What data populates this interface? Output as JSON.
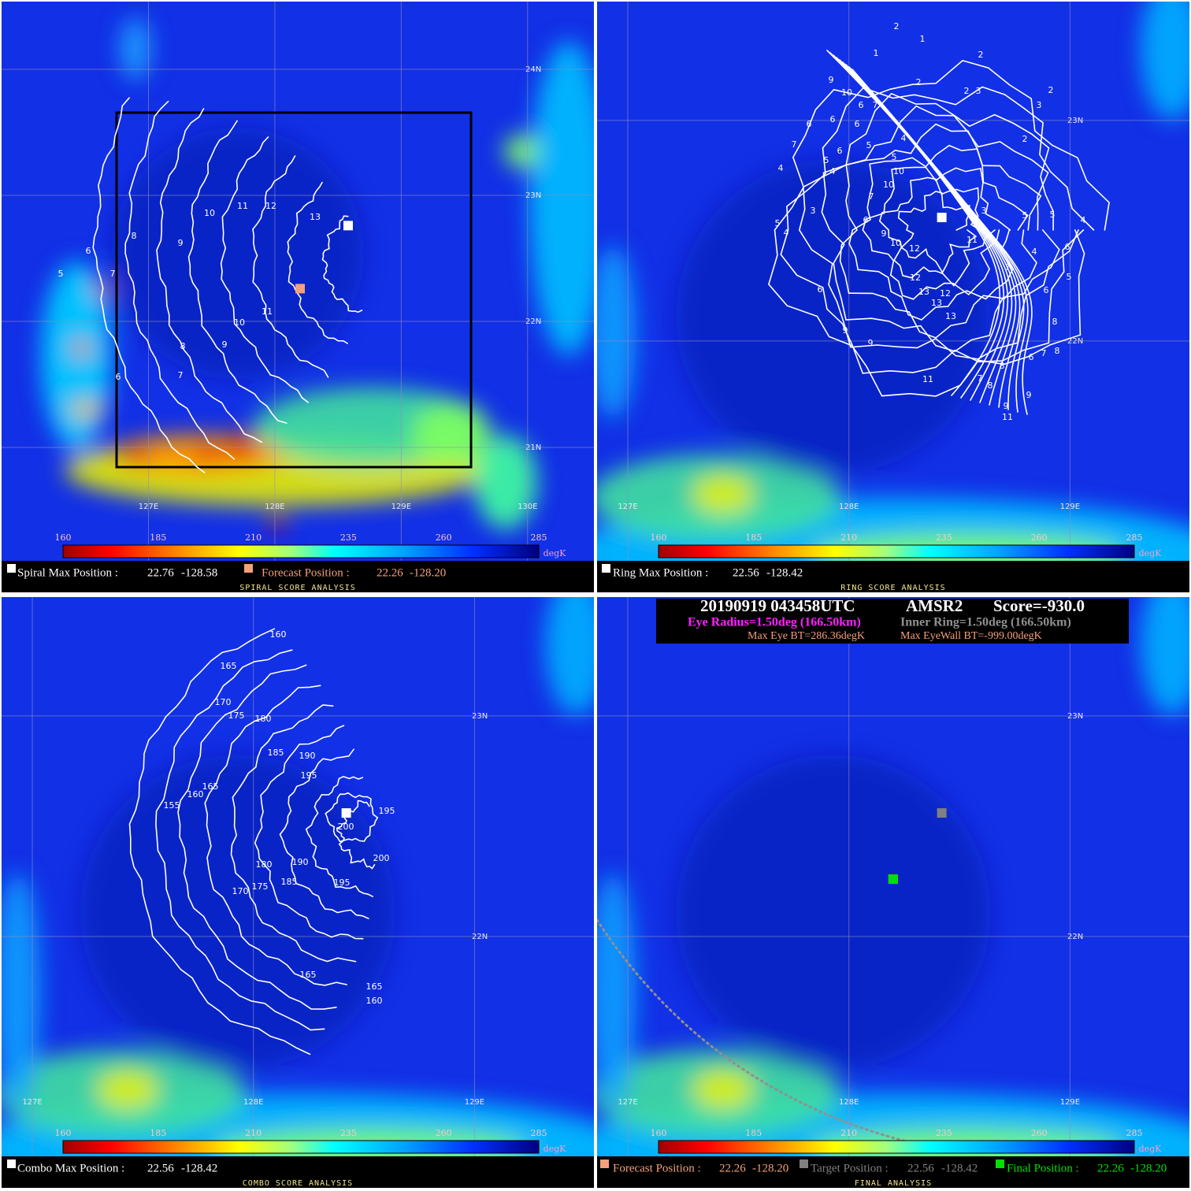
{
  "colorbar": {
    "ticks": [
      160,
      185,
      210,
      235,
      260,
      285
    ],
    "unit": "degK"
  },
  "header": {
    "datetime": "20190919 043458UTC",
    "sensor": "AMSR2",
    "score": "Score=-930.0",
    "eye_radius": "Eye Radius=1.50deg (166.50km)",
    "inner_ring": "Inner Ring=1.50deg (166.50km)",
    "max_eye_bt": "Max Eye BT=286.36degK",
    "max_eyewall_bt": "Max EyeWall BT=-999.00degK"
  },
  "panels": [
    {
      "title": "SPIRAL SCORE ANALYSIS",
      "xlim": [
        125.8375,
        130.525
      ],
      "ylim": [
        20.1,
        24.5375
      ],
      "lat_ticks": [
        {
          "value": 24,
          "label": "24N"
        },
        {
          "value": 23,
          "label": "23N"
        },
        {
          "value": 22,
          "label": "22N"
        },
        {
          "value": 21,
          "label": "21N"
        }
      ],
      "lon_ticks": [
        {
          "value": 127,
          "label": "127E"
        },
        {
          "value": 128,
          "label": "128E"
        },
        {
          "value": 129,
          "label": "129E"
        },
        {
          "value": 130,
          "label": "130E"
        }
      ],
      "contour_labels": [
        13,
        12,
        11,
        10,
        9,
        8,
        6,
        7,
        5,
        11,
        10,
        9,
        8,
        7,
        6
      ],
      "positions": [
        {
          "label": "Spiral Max Position :",
          "lat": 22.76,
          "lon": -128.58,
          "color": "#ffffff"
        },
        {
          "label": "Forecast Position :",
          "lat": 22.26,
          "lon": {
            "value": -128.2,
            "label": "-128.20"
          },
          "color": "#f4a07a"
        }
      ]
    },
    {
      "title": "RING SCORE ANALYSIS",
      "xlim": [
        126.861,
        129.54
      ],
      "ylim": [
        21.003,
        23.539
      ],
      "lat_ticks": [
        {
          "value": 23,
          "label": "23N"
        },
        {
          "value": 22,
          "label": "22N"
        }
      ],
      "lon_ticks": [
        {
          "value": 127,
          "label": "127E"
        },
        {
          "value": 128,
          "label": "128E"
        },
        {
          "value": 129,
          "label": "129E"
        }
      ],
      "contour_labels": [
        2,
        1,
        1,
        2,
        2,
        2,
        3,
        2,
        3,
        9,
        10,
        6,
        7,
        6,
        6,
        6,
        2,
        7,
        5,
        4,
        6,
        5,
        4,
        5,
        10,
        4,
        10,
        7,
        3,
        3,
        5,
        5,
        4,
        5,
        4,
        6,
        9,
        10,
        12,
        11,
        4,
        6,
        7,
        12,
        12,
        13,
        13,
        5,
        6,
        6,
        13,
        8,
        9,
        9,
        8,
        6,
        7,
        8,
        11,
        7,
        8,
        9,
        9,
        11
      ],
      "positions": [
        {
          "label": "Ring Max Position :",
          "lat": 22.56,
          "lon": -128.42,
          "color": "#ffffff"
        }
      ]
    },
    {
      "title": "COMBO SCORE ANALYSIS",
      "xlim": [
        126.861,
        129.54
      ],
      "ylim": [
        21.003,
        23.539
      ],
      "lat_ticks": [
        {
          "value": 23,
          "label": "23N"
        },
        {
          "value": 22,
          "label": "22N"
        }
      ],
      "lon_ticks": [
        {
          "value": 127,
          "label": "127E"
        },
        {
          "value": 128,
          "label": "128E"
        },
        {
          "value": 129,
          "label": "129E"
        }
      ],
      "contour_labels": [
        160,
        165,
        170,
        175,
        180,
        185,
        190,
        195,
        155,
        160,
        165,
        195,
        200,
        200,
        180,
        190,
        185,
        195,
        175,
        170,
        165,
        165,
        160
      ],
      "positions": [
        {
          "label": "Combo Max Position :",
          "lat": 22.56,
          "lon": -128.42,
          "color": "#ffffff"
        }
      ]
    },
    {
      "title": "FINAL ANALYSIS",
      "xlim": [
        126.861,
        129.54
      ],
      "ylim": [
        21.003,
        23.539
      ],
      "lat_ticks": [
        {
          "value": 23,
          "label": "23N"
        },
        {
          "value": 22,
          "label": "22N"
        }
      ],
      "lon_ticks": [
        {
          "value": 127,
          "label": "127E"
        },
        {
          "value": 128,
          "label": "128E"
        },
        {
          "value": 129,
          "label": "129E"
        }
      ],
      "positions": [
        {
          "label": "Forecast Position :",
          "lat": 22.26,
          "lon": {
            "value": -128.2,
            "label": "-128.20"
          },
          "color": "#f4a07a"
        },
        {
          "label": "Target Position :",
          "lat": 22.56,
          "lon": -128.42,
          "color": "#808080"
        },
        {
          "label": "Final Position :",
          "lat": 22.26,
          "lon": {
            "value": -128.2,
            "label": "-128.20"
          },
          "color": "#00e000"
        }
      ]
    }
  ]
}
